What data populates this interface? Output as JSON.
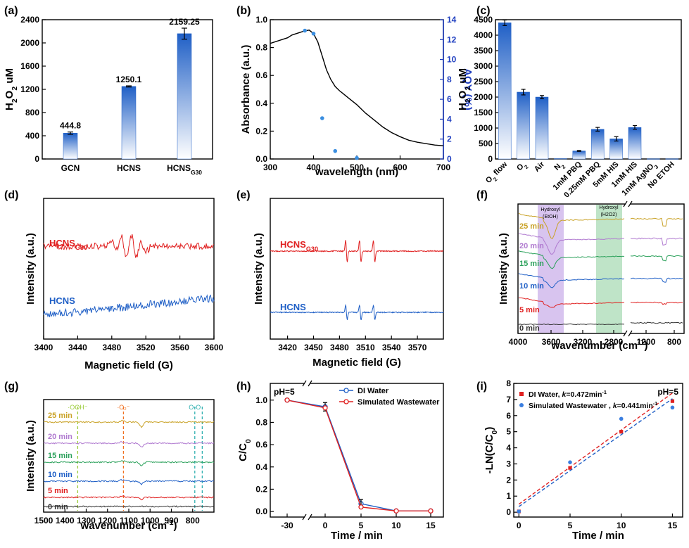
{
  "colors": {
    "blue": "#1f5fc6",
    "red": "#e02020",
    "gold": "#c9a227",
    "purple": "#b07ad0",
    "green": "#2aa05a",
    "navy": "#1f3fc0",
    "black": "#333333",
    "band_purple": "#d8c4ef",
    "band_green": "#bfe4c8"
  },
  "panels": {
    "a": "(a)",
    "b": "(b)",
    "c": "(c)",
    "d": "(d)",
    "e": "(e)",
    "f": "(f)",
    "g": "(g)",
    "h": "(h)",
    "i": "(i)"
  },
  "chart_data": [
    {
      "panel": "a",
      "type": "bar",
      "categories": [
        "GCN",
        "HCNS",
        "HCNSG30"
      ],
      "category_labels": [
        {
          "main": "GCN",
          "sub": ""
        },
        {
          "main": "HCNS",
          "sub": ""
        },
        {
          "main": "HCNS",
          "sub": "G30"
        }
      ],
      "values": [
        444.8,
        1250.1,
        2159.25
      ],
      "errors": [
        20,
        10,
        95
      ],
      "data_labels": [
        "444.8",
        "1250.1",
        "2159.25"
      ],
      "ylabel": {
        "main": "H",
        "sub": "2",
        "rest": "O",
        "sub2": "2",
        "tail": " uM"
      },
      "ylim": [
        0,
        2400
      ],
      "yticks": [
        0,
        400,
        800,
        1200,
        1600,
        2000,
        2400
      ]
    },
    {
      "panel": "b",
      "type": "line",
      "xlabel": "wavelength (nm)",
      "ylabel": "Absorbance (a.u.)",
      "y2label": "AQY (%)",
      "xlim": [
        300,
        700
      ],
      "ylim": [
        0,
        1.0
      ],
      "y2lim": [
        0,
        14
      ],
      "xticks": [
        300,
        400,
        500,
        600,
        700
      ],
      "yticks": [
        0.0,
        0.2,
        0.4,
        0.6,
        0.8,
        1.0
      ],
      "y2ticks": [
        0,
        2,
        4,
        6,
        8,
        10,
        12,
        14
      ],
      "absorbance": {
        "x": [
          300,
          320,
          340,
          350,
          360,
          370,
          380,
          390,
          400,
          410,
          420,
          430,
          440,
          450,
          460,
          470,
          480,
          500,
          520,
          540,
          560,
          580,
          600,
          620,
          640,
          660,
          680,
          700
        ],
        "y": [
          0.83,
          0.85,
          0.87,
          0.89,
          0.9,
          0.91,
          0.92,
          0.925,
          0.9,
          0.84,
          0.74,
          0.64,
          0.57,
          0.52,
          0.49,
          0.465,
          0.44,
          0.39,
          0.33,
          0.28,
          0.23,
          0.19,
          0.16,
          0.135,
          0.12,
          0.11,
          0.1,
          0.095
        ]
      },
      "aqy": {
        "x": [
          380,
          400,
          420,
          450,
          500
        ],
        "y": [
          12.9,
          12.6,
          4.1,
          0.8,
          0.1
        ]
      }
    },
    {
      "panel": "c",
      "type": "bar",
      "categories": [
        "O2 flow",
        "O2",
        "Air",
        "N2",
        "1mM PBQ",
        "0.25mM PBQ",
        "5mM HIS",
        "1mM HIS",
        "1mM AgNO3",
        "No ETOH"
      ],
      "category_labels": [
        {
          "main": "O",
          "sub": "2",
          "tail": " flow"
        },
        {
          "main": "O",
          "sub": "2",
          "tail": ""
        },
        {
          "main": "Air",
          "sub": "",
          "tail": ""
        },
        {
          "main": "N",
          "sub": "2",
          "tail": ""
        },
        {
          "main": "1mM PBQ",
          "sub": "",
          "tail": ""
        },
        {
          "main": "0.25mM PBQ",
          "sub": "",
          "tail": ""
        },
        {
          "main": "5mM HIS",
          "sub": "",
          "tail": ""
        },
        {
          "main": "1mM HIS",
          "sub": "",
          "tail": ""
        },
        {
          "main": "1mM AgNO",
          "sub": "3",
          "tail": ""
        },
        {
          "main": "No ETOH",
          "sub": "",
          "tail": ""
        }
      ],
      "values": [
        4400,
        2160,
        2000,
        10,
        260,
        960,
        650,
        1020,
        5,
        5
      ],
      "errors": [
        90,
        90,
        50,
        0,
        15,
        60,
        70,
        60,
        0,
        0
      ],
      "ylabel": {
        "main": "H",
        "sub": "2",
        "rest": "O",
        "sub2": "2",
        "tail": " uM"
      },
      "ylim": [
        0,
        4500
      ],
      "yticks": [
        0,
        500,
        1000,
        1500,
        2000,
        2500,
        3000,
        3500,
        4000,
        4500
      ]
    },
    {
      "panel": "d",
      "type": "line",
      "xlabel": "Magnetic field (G)",
      "ylabel": "Intensity (a.u.)",
      "xlim": [
        3400,
        3600
      ],
      "xticks": [
        3400,
        3440,
        3480,
        3520,
        3560,
        3600
      ],
      "series": [
        {
          "name": "HCNSG30",
          "label": {
            "main": "HCNS",
            "sub": "G30"
          },
          "color": "red"
        },
        {
          "name": "HCNS",
          "label": {
            "main": "HCNS",
            "sub": ""
          },
          "color": "blue"
        }
      ]
    },
    {
      "panel": "e",
      "type": "line",
      "xlabel": "Magnetic field (G)",
      "ylabel": "Intensity (a.u.)",
      "xlim": [
        3400,
        3600
      ],
      "xticks": [
        3420,
        3450,
        3480,
        3510,
        3540,
        3570
      ],
      "series": [
        {
          "name": "HCNSG30",
          "label": {
            "main": "HCNS",
            "sub": "G30"
          },
          "color": "red"
        },
        {
          "name": "HCNS",
          "label": {
            "main": "HCNS",
            "sub": ""
          },
          "color": "blue"
        }
      ]
    },
    {
      "panel": "f",
      "type": "line",
      "xlabel": "wavenumber (cm-1)",
      "xlabel_parts": {
        "main": "wavenumber (cm",
        "sup": "-1",
        "tail": ")"
      },
      "ylabel": "Intensity (a.u.)",
      "xticks_left": [
        "4000",
        "3600",
        "3200",
        "2800"
      ],
      "xticks_right": [
        "1200",
        "800"
      ],
      "bands": [
        {
          "label": "Hydroxyl",
          "sublabel": "(EtOH)",
          "color": "band_purple"
        },
        {
          "label": "Hydroxyl",
          "sublabel": "(H2O2)",
          "color": "band_green"
        }
      ],
      "series": [
        {
          "name": "25 min",
          "color": "gold"
        },
        {
          "name": "20 min",
          "color": "purple"
        },
        {
          "name": "15 min",
          "color": "green"
        },
        {
          "name": "10 min",
          "color": "blue"
        },
        {
          "name": "5 min",
          "color": "red"
        },
        {
          "name": "0 min",
          "color": "black"
        }
      ]
    },
    {
      "panel": "g",
      "type": "line",
      "xlabel": "wavenumber (cm-1)",
      "xlabel_parts": {
        "main": "wavenumber (cm",
        "sup": "-1",
        "tail": ")"
      },
      "ylabel": "Intensity (a.u.)",
      "xlim": [
        1500,
        700
      ],
      "xticks": [
        1500,
        1400,
        1300,
        1200,
        1100,
        1000,
        900,
        800
      ],
      "markers": [
        {
          "label": "·OOH⁻",
          "x": 1340,
          "color": "#9ccc3c"
        },
        {
          "label": "·O₂⁻",
          "x": 1125,
          "color": "#f07020"
        },
        {
          "label": "O-O",
          "x": 790,
          "color": "#30b0b0"
        }
      ],
      "series": [
        {
          "name": "25 min",
          "color": "gold"
        },
        {
          "name": "20 min",
          "color": "purple"
        },
        {
          "name": "15 min",
          "color": "green"
        },
        {
          "name": "10 min",
          "color": "blue"
        },
        {
          "name": "5 min",
          "color": "red"
        },
        {
          "name": "0 min",
          "color": "black"
        }
      ]
    },
    {
      "panel": "h",
      "type": "line",
      "xlabel": "Time / min",
      "ylabel": {
        "main": "C/C",
        "sub": "0",
        "tail": ""
      },
      "annotation": "pH=5",
      "xticks": [
        "-30",
        "0",
        "5",
        "10",
        "15"
      ],
      "yticks": [
        0.0,
        0.2,
        0.4,
        0.6,
        0.8,
        1.0
      ],
      "ylim": [
        -0.05,
        1.15
      ],
      "series": [
        {
          "name": "DI Water",
          "color": "blue",
          "x": [
            -30,
            0,
            5,
            10,
            15
          ],
          "y": [
            1.0,
            0.94,
            0.07,
            0.005,
            0.005
          ]
        },
        {
          "name": "Simulated Wastewater",
          "color": "red",
          "x": [
            -30,
            0,
            5,
            10,
            15
          ],
          "y": [
            1.0,
            0.93,
            0.04,
            0.005,
            0.005
          ]
        }
      ]
    },
    {
      "panel": "i",
      "type": "scatter",
      "xlabel": "Time / min",
      "ylabel": {
        "main": "-LN(C/C",
        "sub": "0",
        "tail": ")"
      },
      "annotation": "pH=5",
      "xlim": [
        -0.5,
        16
      ],
      "ylim": [
        -0.3,
        8
      ],
      "xticks": [
        0,
        5,
        10,
        15
      ],
      "yticks": [
        0,
        1,
        2,
        3,
        4,
        5,
        6,
        7,
        8
      ],
      "series": [
        {
          "name": "DI Water",
          "k": "0.472",
          "legend": {
            "pre": "DI Water, ",
            "k": "k",
            "eq": "=0.472min",
            "sup": "-1"
          },
          "color": "red",
          "marker": "square",
          "x": [
            0,
            5,
            10,
            15
          ],
          "y": [
            0.05,
            2.75,
            5.0,
            6.9
          ],
          "fit": [
            0.5,
            7.4
          ]
        },
        {
          "name": "Simulated Wastewater",
          "k": "0.441",
          "legend": {
            "pre": "Simulated Wastewater , ",
            "k": "k",
            "eq": "=0.441min",
            "sup": "-1"
          },
          "color": "blue",
          "marker": "circle",
          "x": [
            0,
            5,
            10,
            15
          ],
          "y": [
            0.05,
            3.1,
            5.8,
            6.5
          ],
          "fit": [
            0.35,
            7.05
          ]
        }
      ]
    }
  ]
}
